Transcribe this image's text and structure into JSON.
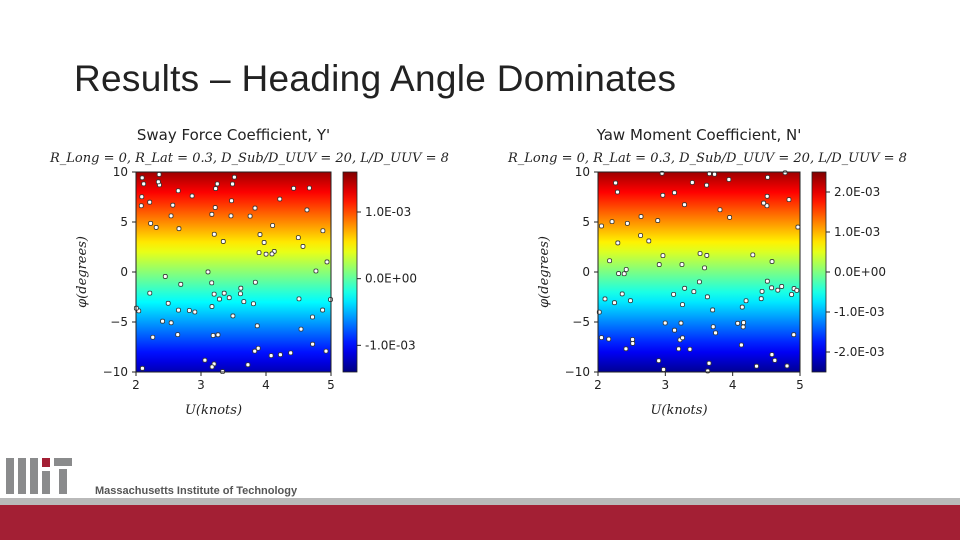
{
  "slide": {
    "title": "Results – Heading Angle Dominates"
  },
  "footer": {
    "institution": "Massachusetts Institute of Technology",
    "logo_icon": "mit-logo-icon",
    "brand_red": "#a31f34",
    "band_gray": "#b9b9b9"
  },
  "chart_data": [
    {
      "type": "heatmap",
      "title": "Sway Force Coefficient, Y'",
      "subtitle": "R_Long = 0, R_Lat = 0.3, D_Sub/D_UUV = 20, L/D_UUV = 8",
      "xlabel": "U(knots)",
      "ylabel": "φ(degrees)",
      "xlim": [
        2,
        5
      ],
      "ylim": [
        -10,
        10
      ],
      "xticks": [
        2,
        3,
        4,
        5
      ],
      "yticks": [
        10,
        5,
        0,
        -5,
        -10
      ],
      "colorbar": {
        "colormap": "jet",
        "range": [
          -0.0014,
          0.0016
        ],
        "ticks": [
          {
            "value": 0.001,
            "label": "1.0E-03"
          },
          {
            "value": 0.0,
            "label": "0.0E+00"
          },
          {
            "value": -0.001,
            "label": "-1.0E-03"
          }
        ]
      },
      "field": "linear in φ",
      "sample_points_shown": true
    },
    {
      "type": "heatmap",
      "title": "Yaw Moment Coefficient, N'",
      "subtitle": "R_Long = 0, R_Lat = 0.3, D_Sub/D_UUV = 20, L/D_UUV = 8",
      "xlabel": "U(knots)",
      "ylabel": "φ(degrees)",
      "xlim": [
        2,
        5
      ],
      "ylim": [
        -10,
        10
      ],
      "xticks": [
        2,
        3,
        4,
        5
      ],
      "yticks": [
        10,
        5,
        0,
        -5,
        -10
      ],
      "colorbar": {
        "colormap": "jet",
        "range": [
          -0.0025,
          0.0025
        ],
        "ticks": [
          {
            "value": 0.002,
            "label": "2.0E-03"
          },
          {
            "value": 0.001,
            "label": "1.0E-03"
          },
          {
            "value": 0.0,
            "label": "0.0E+00"
          },
          {
            "value": -0.001,
            "label": "-1.0E-03"
          },
          {
            "value": -0.002,
            "label": "-2.0E-03"
          }
        ]
      },
      "field": "linear in φ",
      "sample_points_shown": true
    }
  ]
}
